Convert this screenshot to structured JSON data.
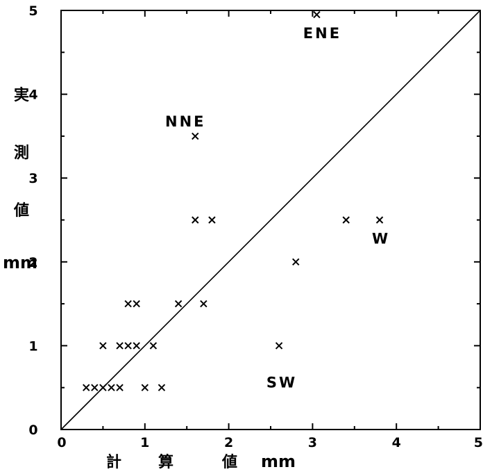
{
  "chart_data": {
    "type": "scatter",
    "xlabel": [
      "計",
      "算",
      "値"
    ],
    "xlabel_unit": "mm",
    "ylabel": [
      "実",
      "測",
      "値"
    ],
    "ylabel_unit": "mm",
    "xlim": [
      0,
      5
    ],
    "ylim": [
      0,
      5
    ],
    "xticks": [
      "0",
      "1",
      "2",
      "3",
      "4",
      "5"
    ],
    "yticks": [
      "0",
      "1",
      "2",
      "3",
      "4",
      "5"
    ],
    "reference_line": {
      "from": [
        0,
        0
      ],
      "to": [
        5,
        5
      ]
    },
    "marker": "×",
    "points": [
      {
        "x": 0.3,
        "y": 0.5
      },
      {
        "x": 0.4,
        "y": 0.5
      },
      {
        "x": 0.5,
        "y": 0.5
      },
      {
        "x": 0.6,
        "y": 0.5
      },
      {
        "x": 0.7,
        "y": 0.5
      },
      {
        "x": 1.0,
        "y": 0.5
      },
      {
        "x": 1.2,
        "y": 0.5
      },
      {
        "x": 0.5,
        "y": 1.0
      },
      {
        "x": 0.7,
        "y": 1.0
      },
      {
        "x": 0.8,
        "y": 1.0
      },
      {
        "x": 0.9,
        "y": 1.0
      },
      {
        "x": 1.1,
        "y": 1.0
      },
      {
        "x": 0.8,
        "y": 1.5
      },
      {
        "x": 0.9,
        "y": 1.5
      },
      {
        "x": 1.4,
        "y": 1.5
      },
      {
        "x": 1.7,
        "y": 1.5
      },
      {
        "x": 2.8,
        "y": 2.0
      },
      {
        "x": 1.6,
        "y": 2.5
      },
      {
        "x": 1.8,
        "y": 2.5
      },
      {
        "x": 3.4,
        "y": 2.5
      },
      {
        "x": 3.8,
        "y": 2.5
      },
      {
        "x": 2.6,
        "y": 1.0
      },
      {
        "x": 1.6,
        "y": 3.5
      },
      {
        "x": 3.05,
        "y": 4.95
      }
    ],
    "annotations": [
      {
        "text": "ENE",
        "x": 3.05,
        "y": 4.95
      },
      {
        "text": "NNE",
        "x": 1.6,
        "y": 3.5
      },
      {
        "text": "W",
        "x": 3.8,
        "y": 2.5
      },
      {
        "text": "SW",
        "x": 2.6,
        "y": 1.0
      }
    ]
  }
}
